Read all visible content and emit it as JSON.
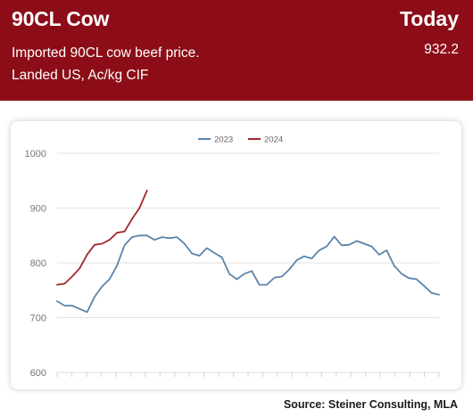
{
  "header": {
    "title": "90CL Cow",
    "today_label": "Today",
    "description_line1": "Imported 90CL cow beef price.",
    "description_line2": "Landed US, Ac/kg CIF",
    "today_value": "932.2"
  },
  "colors": {
    "header_bg": "#8c0d17",
    "series_2023": "#5b84aa",
    "series_2024": "#a2262c"
  },
  "source": "Source: Steiner Consulting, MLA",
  "chart_data": {
    "type": "line",
    "ylim": [
      600,
      1000
    ],
    "yticks": [
      "600",
      "700",
      "800",
      "900",
      "1000"
    ],
    "grid": true,
    "legend_position": "top-center",
    "series": [
      {
        "name": "2023",
        "color": "#5b84aa",
        "values": [
          730,
          722,
          722,
          716,
          710,
          738,
          757,
          770,
          795,
          832,
          847,
          850,
          850,
          842,
          847,
          845,
          847,
          835,
          817,
          813,
          827,
          818,
          810,
          780,
          770,
          780,
          785,
          760,
          760,
          773,
          775,
          788,
          805,
          812,
          808,
          823,
          830,
          848,
          832,
          833,
          840,
          835,
          830,
          815,
          823,
          795,
          780,
          772,
          770,
          758,
          745,
          742
        ]
      },
      {
        "name": "2024",
        "color": "#a2262c",
        "values": [
          760,
          762,
          775,
          790,
          815,
          833,
          835,
          842,
          855,
          857,
          880,
          900,
          932
        ]
      }
    ]
  }
}
